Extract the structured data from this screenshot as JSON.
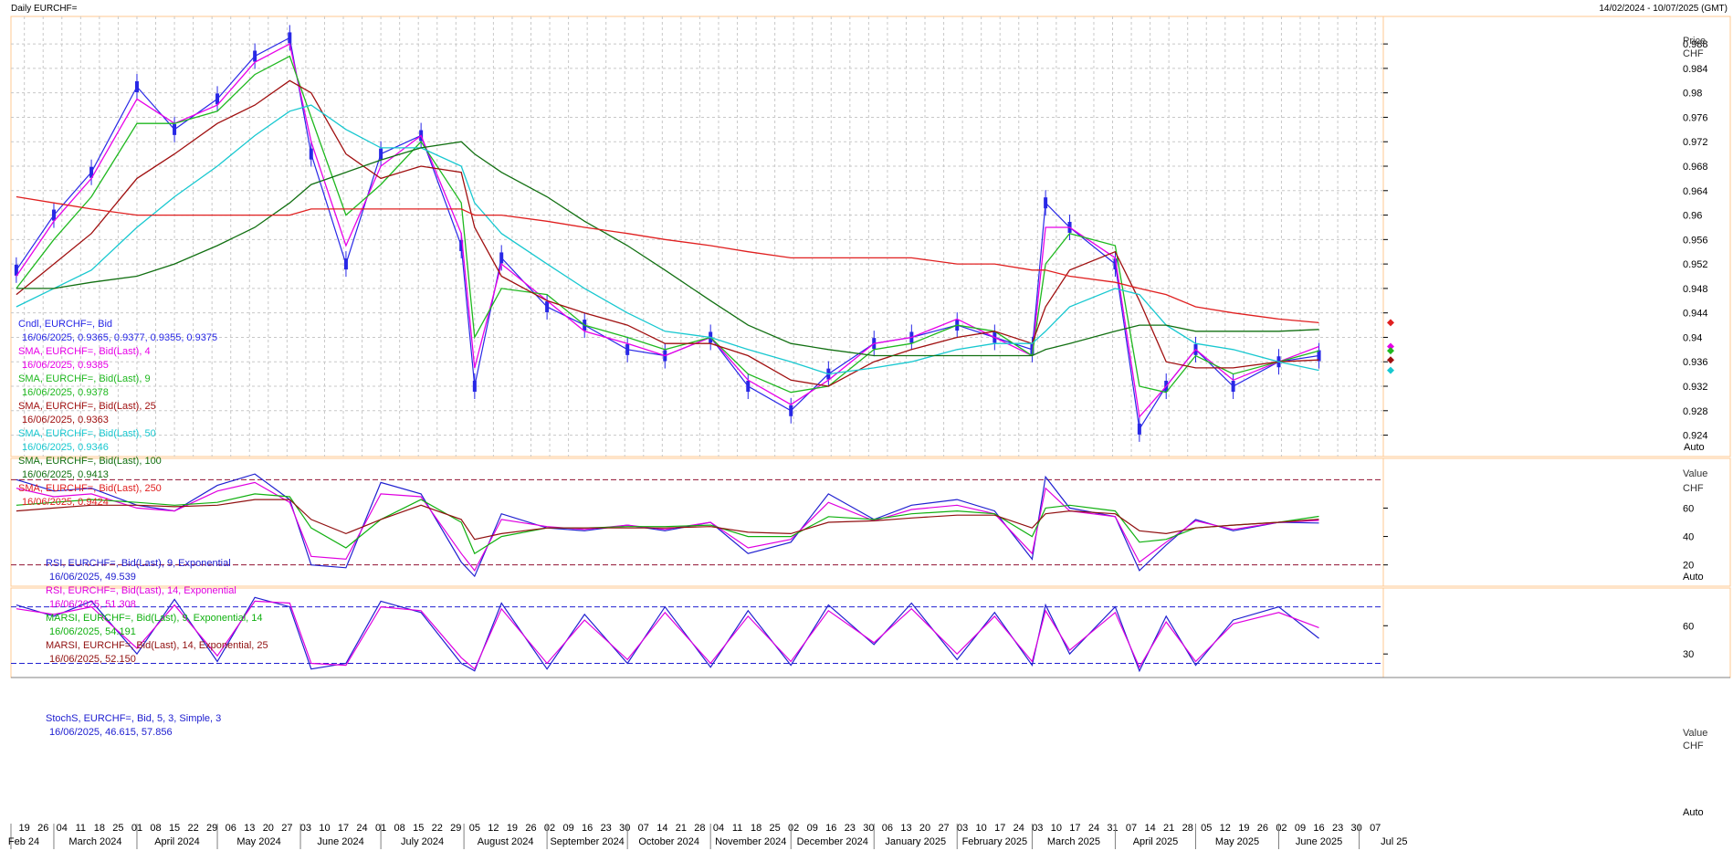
{
  "header": {
    "title": "Daily EURCHF=",
    "range": "14/02/2024 - 10/07/2025 (GMT)"
  },
  "colors": {
    "candles": "#2828e6",
    "sma4": "#e800e8",
    "sma9": "#1fb81f",
    "sma25": "#a01010",
    "sma50": "#18c8d0",
    "sma100": "#127012",
    "sma250": "#e02020",
    "rsi9": "#2020d0",
    "rsi14": "#e000e0",
    "marsi9": "#10b010",
    "marsi14": "#901010",
    "stochK": "#2020d0",
    "stochD": "#e000e0",
    "grid": "#c8c8c8",
    "frame": "#ffc890"
  },
  "chart_data": [
    {
      "type": "line",
      "panel": "price",
      "ylabel": "Price",
      "yunit": "CHF",
      "ylim": [
        0.9205,
        0.9925
      ],
      "yticks": [
        "0.988",
        "0.984",
        "0.98",
        "0.976",
        "0.972",
        "0.968",
        "0.964",
        "0.96",
        "0.956",
        "0.952",
        "0.948",
        "0.944",
        "0.94",
        "0.936",
        "0.932",
        "0.928",
        "0.924"
      ],
      "auto_label": "Auto",
      "grid": true,
      "x_dates": [
        "2024-02-16",
        "2024-03-01",
        "2024-03-15",
        "2024-04-01",
        "2024-04-15",
        "2024-05-01",
        "2024-05-15",
        "2024-05-28",
        "2024-06-05",
        "2024-06-18",
        "2024-07-01",
        "2024-07-16",
        "2024-07-31",
        "2024-08-05",
        "2024-08-15",
        "2024-09-01",
        "2024-09-15",
        "2024-10-01",
        "2024-10-15",
        "2024-11-01",
        "2024-11-15",
        "2024-12-01",
        "2024-12-15",
        "2025-01-01",
        "2025-01-15",
        "2025-02-01",
        "2025-02-15",
        "2025-03-01",
        "2025-03-06",
        "2025-03-15",
        "2025-04-01",
        "2025-04-10",
        "2025-04-20",
        "2025-05-01",
        "2025-05-15",
        "2025-06-01",
        "2025-06-16"
      ],
      "series": [
        {
          "name": "Cndl, EURCHF=, Bid",
          "last": "16/06/2025, 0.9365, 0.9377, 0.9355, 0.9375",
          "values": [
            0.951,
            0.96,
            0.967,
            0.981,
            0.974,
            0.979,
            0.986,
            0.989,
            0.97,
            0.952,
            0.97,
            0.973,
            0.955,
            0.932,
            0.953,
            0.945,
            0.942,
            0.938,
            0.937,
            0.94,
            0.932,
            0.928,
            0.934,
            0.939,
            0.94,
            0.942,
            0.94,
            0.938,
            0.962,
            0.958,
            0.952,
            0.925,
            0.932,
            0.938,
            0.932,
            0.936,
            0.937
          ]
        },
        {
          "name": "SMA, EURCHF=, Bid(Last), 4",
          "last": "16/06/2025, 0.9385",
          "values": [
            0.95,
            0.959,
            0.966,
            0.979,
            0.975,
            0.978,
            0.985,
            0.988,
            0.972,
            0.955,
            0.968,
            0.973,
            0.957,
            0.935,
            0.952,
            0.946,
            0.941,
            0.939,
            0.937,
            0.94,
            0.933,
            0.929,
            0.933,
            0.939,
            0.94,
            0.943,
            0.94,
            0.937,
            0.958,
            0.958,
            0.953,
            0.927,
            0.932,
            0.938,
            0.933,
            0.936,
            0.9385
          ]
        },
        {
          "name": "SMA, EURCHF=, Bid(Last), 9",
          "last": "16/06/2025, 0.9378",
          "values": [
            0.948,
            0.956,
            0.963,
            0.975,
            0.975,
            0.977,
            0.983,
            0.986,
            0.976,
            0.96,
            0.965,
            0.972,
            0.962,
            0.94,
            0.948,
            0.947,
            0.942,
            0.94,
            0.938,
            0.94,
            0.934,
            0.931,
            0.932,
            0.938,
            0.939,
            0.942,
            0.941,
            0.937,
            0.952,
            0.957,
            0.955,
            0.932,
            0.931,
            0.937,
            0.934,
            0.936,
            0.9378
          ]
        },
        {
          "name": "SMA, EURCHF=, Bid(Last), 25",
          "last": "16/06/2025, 0.9363",
          "values": [
            0.947,
            0.952,
            0.957,
            0.966,
            0.97,
            0.975,
            0.978,
            0.982,
            0.98,
            0.97,
            0.966,
            0.968,
            0.967,
            0.958,
            0.95,
            0.946,
            0.944,
            0.942,
            0.939,
            0.939,
            0.937,
            0.933,
            0.932,
            0.936,
            0.938,
            0.94,
            0.941,
            0.939,
            0.945,
            0.951,
            0.954,
            0.946,
            0.936,
            0.935,
            0.935,
            0.936,
            0.9363
          ]
        },
        {
          "name": "SMA, EURCHF=, Bid(Last), 50",
          "last": "16/06/2025, 0.9346",
          "values": [
            0.945,
            0.948,
            0.951,
            0.958,
            0.963,
            0.968,
            0.973,
            0.977,
            0.978,
            0.974,
            0.971,
            0.971,
            0.968,
            0.962,
            0.957,
            0.952,
            0.948,
            0.944,
            0.941,
            0.94,
            0.938,
            0.936,
            0.934,
            0.935,
            0.936,
            0.938,
            0.939,
            0.939,
            0.941,
            0.945,
            0.948,
            0.947,
            0.942,
            0.939,
            0.938,
            0.936,
            0.9346
          ]
        },
        {
          "name": "SMA, EURCHF=, Bid(Last), 100",
          "last": "16/06/2025, 0.9413",
          "values": [
            0.948,
            0.948,
            0.949,
            0.95,
            0.952,
            0.955,
            0.958,
            0.962,
            0.965,
            0.967,
            0.969,
            0.971,
            0.972,
            0.97,
            0.967,
            0.963,
            0.959,
            0.955,
            0.951,
            0.946,
            0.942,
            0.939,
            0.938,
            0.937,
            0.937,
            0.937,
            0.937,
            0.937,
            0.938,
            0.939,
            0.941,
            0.942,
            0.942,
            0.941,
            0.941,
            0.941,
            0.9413
          ]
        },
        {
          "name": "SMA, EURCHF=, Bid(Last), 250",
          "last": "16/06/2025, 0.9424",
          "values": [
            0.963,
            0.962,
            0.961,
            0.96,
            0.96,
            0.96,
            0.96,
            0.96,
            0.961,
            0.961,
            0.961,
            0.961,
            0.961,
            0.96,
            0.96,
            0.959,
            0.958,
            0.957,
            0.956,
            0.955,
            0.954,
            0.953,
            0.953,
            0.953,
            0.953,
            0.952,
            0.952,
            0.951,
            0.951,
            0.95,
            0.949,
            0.948,
            0.947,
            0.945,
            0.944,
            0.943,
            0.9424
          ]
        }
      ]
    },
    {
      "type": "line",
      "panel": "rsi",
      "ylabel": "Value",
      "yunit": "CHF",
      "ylim": [
        5,
        95
      ],
      "yticks": [
        "60",
        "40",
        "20"
      ],
      "auto_label": "Auto",
      "grid": false,
      "series": [
        {
          "name": "RSI, EURCHF=, Bid(Last), 9, Exponential",
          "last": "16/06/2025, 49.539",
          "values": [
            80,
            72,
            74,
            62,
            58,
            76,
            84,
            66,
            20,
            18,
            78,
            70,
            22,
            12,
            56,
            46,
            44,
            48,
            44,
            50,
            28,
            36,
            70,
            52,
            62,
            66,
            58,
            24,
            82,
            60,
            54,
            16,
            34,
            52,
            44,
            50,
            49.5
          ]
        },
        {
          "name": "RSI, EURCHF=, Bid(Last), 14, Exponential",
          "last": "16/06/2025, 51.308",
          "values": [
            74,
            68,
            70,
            60,
            58,
            72,
            78,
            64,
            26,
            24,
            70,
            68,
            28,
            16,
            52,
            47,
            45,
            48,
            45,
            50,
            32,
            38,
            64,
            51,
            59,
            62,
            56,
            28,
            74,
            58,
            54,
            22,
            36,
            51,
            45,
            50,
            51.3
          ]
        },
        {
          "name": "MARSI, EURCHF=, Bid(Last), 9, Exponential, 14",
          "last": "16/06/2025, 54.191",
          "values": [
            62,
            64,
            66,
            64,
            62,
            64,
            70,
            68,
            46,
            32,
            52,
            66,
            50,
            28,
            40,
            46,
            46,
            47,
            47,
            48,
            40,
            40,
            54,
            52,
            56,
            58,
            56,
            40,
            60,
            62,
            58,
            36,
            38,
            46,
            48,
            50,
            54.2
          ]
        },
        {
          "name": "MARSI, EURCHF=, Bid(Last), 14, Exponential, 25",
          "last": "16/06/2025, 52.150",
          "values": [
            58,
            60,
            62,
            62,
            61,
            62,
            66,
            66,
            52,
            42,
            52,
            62,
            52,
            38,
            42,
            46,
            46,
            46,
            46,
            47,
            43,
            42,
            50,
            51,
            53,
            55,
            55,
            46,
            56,
            58,
            56,
            44,
            42,
            46,
            48,
            50,
            52.2
          ]
        }
      ]
    },
    {
      "type": "line",
      "panel": "stoch",
      "ylabel": "Value",
      "yunit": "CHF",
      "ylim": [
        5,
        100
      ],
      "yticks": [
        "60",
        "30"
      ],
      "auto_label": "Auto",
      "grid": false,
      "series": [
        {
          "name": "StochS, EURCHF=, Bid, 5, 3, Simple, 3",
          "last": "16/06/2025, 46.615, 57.856",
          "values": [
            82,
            70,
            86,
            30,
            88,
            22,
            90,
            80,
            14,
            20,
            86,
            74,
            20,
            12,
            84,
            14,
            72,
            20,
            80,
            16,
            76,
            18,
            82,
            40,
            84,
            24,
            74,
            18,
            82,
            30,
            80,
            12,
            70,
            18,
            66,
            80,
            46.6
          ]
        },
        {
          "name": "StochS %D",
          "values": [
            78,
            72,
            80,
            36,
            82,
            28,
            86,
            84,
            20,
            18,
            80,
            76,
            26,
            14,
            78,
            20,
            66,
            24,
            74,
            20,
            70,
            22,
            76,
            42,
            78,
            30,
            70,
            22,
            76,
            34,
            74,
            16,
            64,
            22,
            62,
            74,
            57.9
          ]
        }
      ]
    }
  ],
  "legends": {
    "price": [
      {
        "text": "Cndl, EURCHF=, Bid",
        "sub": "16/06/2025, 0.9365, 0.9377, 0.9355, 0.9375",
        "color": "#2828e6"
      },
      {
        "text": "SMA, EURCHF=, Bid(Last),  4",
        "sub": "16/06/2025, 0.9385",
        "color": "#e800e8"
      },
      {
        "text": "SMA, EURCHF=, Bid(Last),  9",
        "sub": "16/06/2025, 0.9378",
        "color": "#1fb81f"
      },
      {
        "text": "SMA, EURCHF=, Bid(Last),  25",
        "sub": "16/06/2025, 0.9363",
        "color": "#a01010"
      },
      {
        "text": "SMA, EURCHF=, Bid(Last),  50",
        "sub": "16/06/2025, 0.9346",
        "color": "#18c8d0"
      },
      {
        "text": "SMA, EURCHF=, Bid(Last),  100",
        "sub": "16/06/2025, 0.9413",
        "color": "#127012"
      },
      {
        "text": "SMA, EURCHF=, Bid(Last),  250",
        "sub": "16/06/2025, 0.9424",
        "color": "#e02020"
      }
    ],
    "rsi": [
      {
        "text": "RSI, EURCHF=, Bid(Last),  9, Exponential",
        "sub": "16/06/2025, 49.539",
        "color": "#2020d0"
      },
      {
        "text": "RSI, EURCHF=, Bid(Last),  14, Exponential",
        "sub": "16/06/2025, 51.308",
        "color": "#e000e0"
      },
      {
        "text": "MARSI, EURCHF=, Bid(Last),  9, Exponential, 14",
        "sub": "16/06/2025, 54.191",
        "color": "#10b010"
      },
      {
        "text": "MARSI, EURCHF=, Bid(Last),  14, Exponential, 25",
        "sub": "16/06/2025, 52.150",
        "color": "#901010"
      }
    ],
    "stoch": [
      {
        "text": "StochS, EURCHF=, Bid,  5, 3, Simple, 3",
        "sub": "16/06/2025, 46.615, 57.856",
        "color": "#2020d0"
      }
    ]
  },
  "xaxis": {
    "days": [
      "19",
      "26",
      "04",
      "11",
      "18",
      "25",
      "01",
      "08",
      "15",
      "22",
      "29",
      "06",
      "13",
      "20",
      "27",
      "03",
      "10",
      "17",
      "24",
      "01",
      "08",
      "15",
      "22",
      "29",
      "05",
      "12",
      "19",
      "26",
      "02",
      "09",
      "16",
      "23",
      "30",
      "07",
      "14",
      "21",
      "28",
      "04",
      "11",
      "18",
      "25",
      "02",
      "09",
      "16",
      "23",
      "30",
      "06",
      "13",
      "20",
      "27",
      "03",
      "10",
      "17",
      "24",
      "03",
      "10",
      "17",
      "24",
      "31",
      "07",
      "14",
      "21",
      "28",
      "05",
      "12",
      "19",
      "26",
      "02",
      "09",
      "16",
      "23",
      "30",
      "07"
    ],
    "months": [
      "Feb 24",
      "March 2024",
      "April 2024",
      "May 2024",
      "June 2024",
      "July 2024",
      "August 2024",
      "September 2024",
      "October 2024",
      "November 2024",
      "December 2024",
      "January 2025",
      "February 2025",
      "March 2025",
      "April 2025",
      "May 2025",
      "June 2025",
      "Jul 25"
    ]
  }
}
